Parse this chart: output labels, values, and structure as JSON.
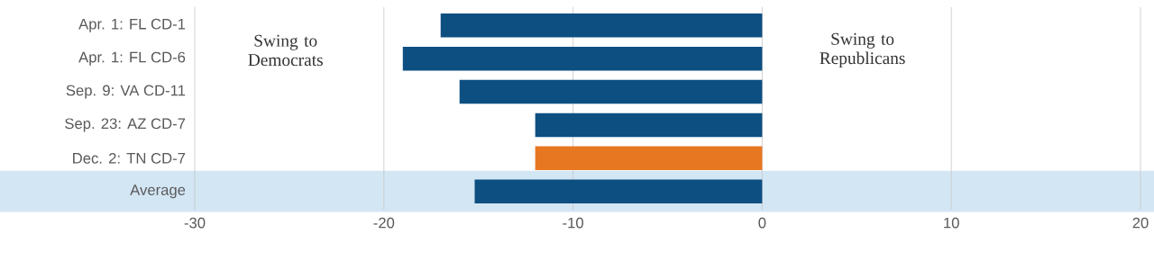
{
  "chart_data": {
    "type": "bar",
    "orientation": "horizontal",
    "categories": [
      "Apr. 1: FL CD-1",
      "Apr. 1: FL CD-6",
      "Sep. 9: VA CD-11",
      "Sep. 23: AZ CD-7",
      "Dec. 2: TN CD-7",
      "Average"
    ],
    "values": [
      -17,
      -19,
      -16,
      -12,
      -12,
      -15.2
    ],
    "colors": [
      "#0e4f82",
      "#0e4f82",
      "#0e4f82",
      "#0e4f82",
      "#e87722",
      "#0e4f82"
    ],
    "xlim": [
      -30,
      20
    ],
    "xticks": [
      -30,
      -20,
      -10,
      0,
      10,
      20
    ],
    "grid": "x",
    "bands": [
      {
        "axis": "y",
        "from": "Average",
        "to": "Average",
        "color": "#d3e6f4"
      }
    ],
    "annotations": [
      "Swing to Democrats",
      "Swing to Republicans"
    ]
  }
}
